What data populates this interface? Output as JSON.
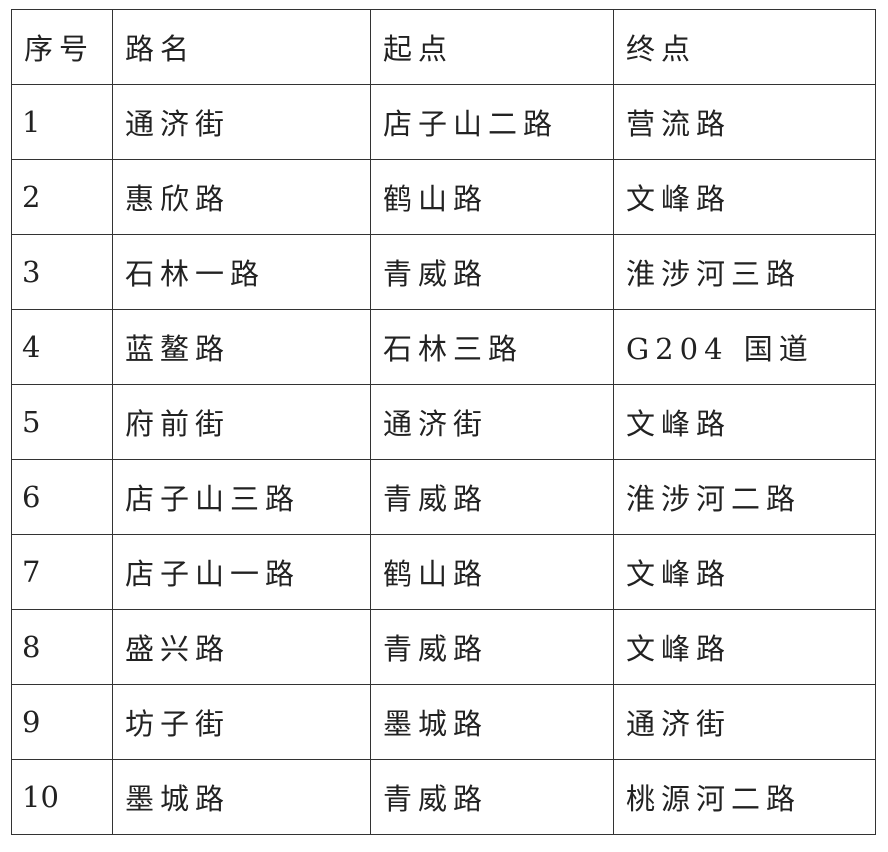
{
  "headers": [
    "序号",
    "路名",
    "起点",
    "终点"
  ],
  "rows": [
    [
      "1",
      "通济街",
      "店子山二路",
      "营流路"
    ],
    [
      "2",
      "惠欣路",
      "鹤山路",
      "文峰路"
    ],
    [
      "3",
      "石林一路",
      "青威路",
      "淮涉河三路"
    ],
    [
      "4",
      "蓝鳌路",
      "石林三路",
      "G204 国道"
    ],
    [
      "5",
      "府前街",
      "通济街",
      "文峰路"
    ],
    [
      "6",
      "店子山三路",
      "青威路",
      "淮涉河二路"
    ],
    [
      "7",
      "店子山一路",
      "鹤山路",
      "文峰路"
    ],
    [
      "8",
      "盛兴路",
      "青威路",
      "文峰路"
    ],
    [
      "9",
      "坊子街",
      "墨城路",
      "通济街"
    ],
    [
      "10",
      "墨城路",
      "青威路",
      "桃源河二路"
    ]
  ]
}
